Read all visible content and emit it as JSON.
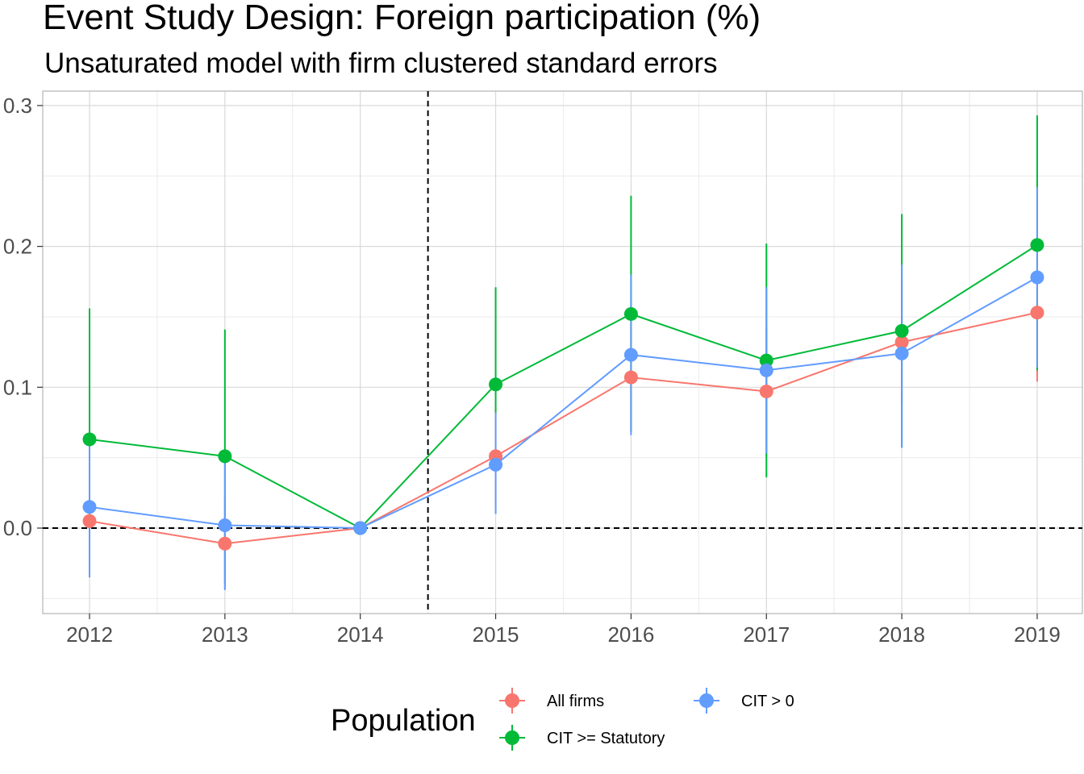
{
  "chart_data": {
    "type": "line",
    "title": "Event Study Design: Foreign participation (%)",
    "subtitle": "Unsaturated model with firm clustered standard errors",
    "xlabel": "",
    "ylabel": "",
    "x": [
      2012,
      2013,
      2014,
      2015,
      2016,
      2017,
      2018,
      2019
    ],
    "x_ticks": [
      "2012",
      "2013",
      "2014",
      "2015",
      "2016",
      "2017",
      "2018",
      "2019"
    ],
    "y_ticks": [
      "0.0",
      "0.1",
      "0.2",
      "0.3"
    ],
    "ylim": [
      -0.06,
      0.31
    ],
    "grid": true,
    "reference_lines": {
      "vertical_x": 2014.5,
      "horizontal_y": 0.0
    },
    "legend": {
      "title": "Population",
      "position": "bottom"
    },
    "series": [
      {
        "name": "All firms",
        "color": "#F8766D",
        "values": [
          0.005,
          -0.011,
          0.0,
          0.051,
          0.107,
          0.097,
          0.132,
          0.153
        ],
        "lower": [
          -0.035,
          -0.043,
          0.0,
          0.015,
          0.068,
          0.051,
          0.088,
          0.104
        ],
        "upper": [
          0.044,
          0.022,
          0.0,
          0.086,
          0.146,
          0.142,
          0.176,
          0.202
        ]
      },
      {
        "name": "CIT >= Statutory",
        "color": "#00BA38",
        "values": [
          0.063,
          0.051,
          0.0,
          0.102,
          0.152,
          0.119,
          0.14,
          0.201
        ],
        "lower": [
          -0.029,
          -0.039,
          0.0,
          0.082,
          0.068,
          0.036,
          0.057,
          0.112
        ],
        "upper": [
          0.156,
          0.141,
          0.0,
          0.171,
          0.236,
          0.202,
          0.223,
          0.293
        ]
      },
      {
        "name": "CIT > 0",
        "color": "#619CFF",
        "values": [
          0.015,
          0.002,
          0.0,
          0.045,
          0.123,
          0.112,
          0.124,
          0.178
        ],
        "lower": [
          -0.035,
          -0.044,
          0.0,
          0.01,
          0.066,
          0.053,
          0.057,
          0.114
        ],
        "upper": [
          0.062,
          0.048,
          0.0,
          0.082,
          0.18,
          0.171,
          0.187,
          0.242
        ]
      }
    ]
  }
}
